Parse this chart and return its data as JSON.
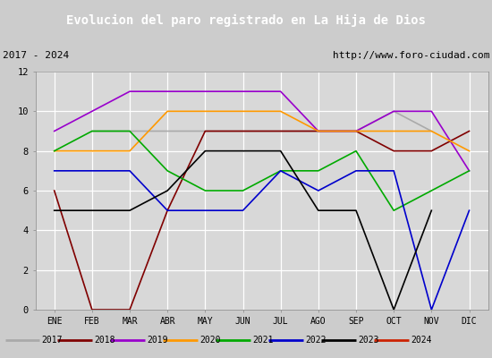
{
  "title": "Evolucion del paro registrado en La Hija de Dios",
  "title_bg": "#4f7fc8",
  "subtitle_left": "2017 - 2024",
  "subtitle_right": "http://www.foro-ciudad.com",
  "months": [
    "ENE",
    "FEB",
    "MAR",
    "ABR",
    "MAY",
    "JUN",
    "JUL",
    "AGO",
    "SEP",
    "OCT",
    "NOV",
    "DIC"
  ],
  "ylim": [
    0,
    12
  ],
  "yticks": [
    0,
    2,
    4,
    6,
    8,
    10,
    12
  ],
  "series": {
    "2017": {
      "color": "#aaaaaa",
      "dashed": false,
      "values": [
        null,
        9,
        9,
        9,
        9,
        9,
        9,
        9,
        9,
        10,
        9,
        null
      ]
    },
    "2018": {
      "color": "#800000",
      "dashed": false,
      "values": [
        6,
        0,
        0,
        5,
        9,
        9,
        9,
        9,
        9,
        8,
        8,
        9
      ]
    },
    "2019": {
      "color": "#9900cc",
      "dashed": false,
      "values": [
        9,
        10,
        11,
        11,
        11,
        11,
        11,
        9,
        9,
        10,
        10,
        7
      ]
    },
    "2020": {
      "color": "#ff9900",
      "dashed": false,
      "values": [
        8,
        8,
        8,
        10,
        10,
        10,
        10,
        9,
        9,
        9,
        9,
        8
      ]
    },
    "2021": {
      "color": "#00aa00",
      "dashed": false,
      "values": [
        8,
        9,
        9,
        7,
        6,
        6,
        7,
        7,
        8,
        5,
        6,
        7
      ]
    },
    "2022": {
      "color": "#0000cc",
      "dashed": false,
      "values": [
        7,
        7,
        7,
        5,
        5,
        5,
        7,
        6,
        7,
        7,
        0,
        5
      ]
    },
    "2023": {
      "color": "#000000",
      "dashed": false,
      "values": [
        5,
        5,
        5,
        6,
        8,
        8,
        8,
        5,
        5,
        0,
        5,
        null
      ]
    },
    "2024": {
      "color": "#cc2200",
      "dashed": true,
      "values": [
        null,
        null,
        null,
        null,
        null,
        null,
        null,
        null,
        9,
        null,
        null,
        null
      ]
    }
  },
  "background_color": "#cccccc",
  "plot_bg": "#d8d8d8",
  "grid_color": "#ffffff",
  "legend_years": [
    "2017",
    "2018",
    "2019",
    "2020",
    "2021",
    "2022",
    "2023",
    "2024"
  ],
  "outer_border_color": "#4f7fc8"
}
